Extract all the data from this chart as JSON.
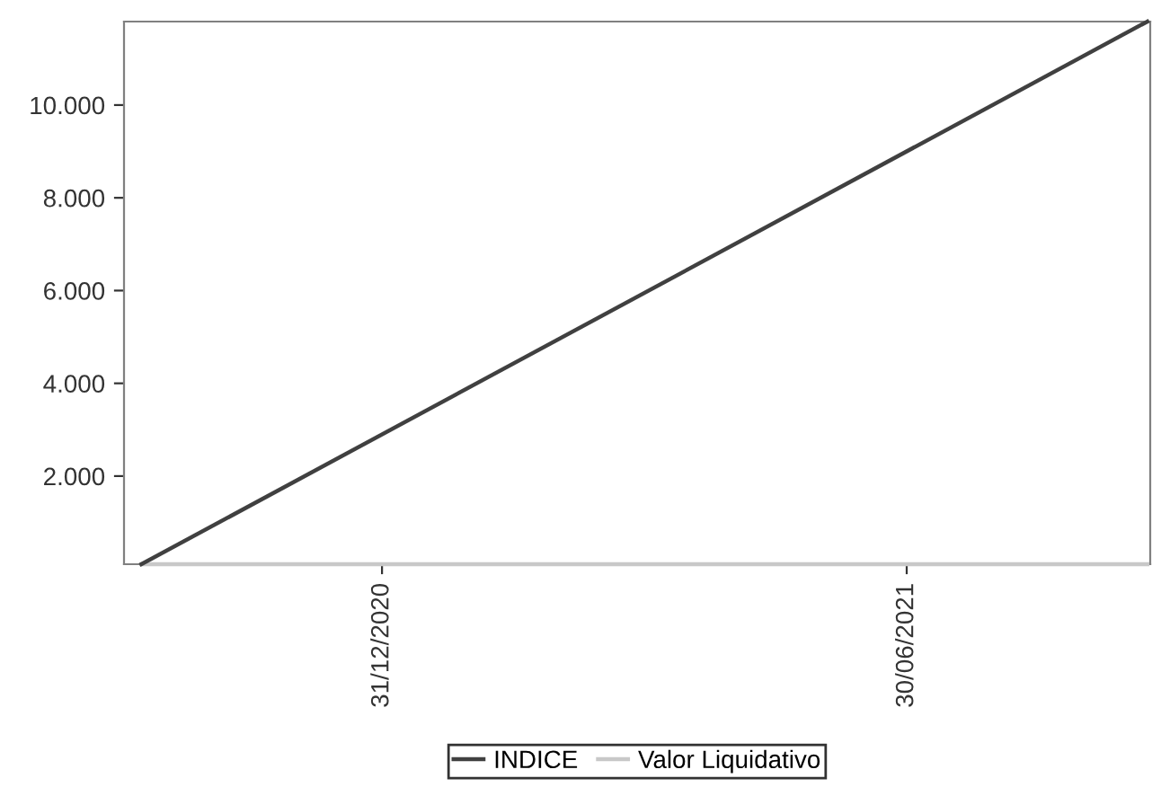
{
  "chart_data": {
    "type": "line",
    "xlim": [
      "2020-10-03",
      "2021-09-22"
    ],
    "xticks": [
      {
        "value": "2020-12-31",
        "label": "31/12/2020"
      },
      {
        "value": "2021-06-30",
        "label": "30/06/2021"
      }
    ],
    "ylim": [
      100,
      11800
    ],
    "yticks": [
      {
        "value": 2000,
        "label": "2.000"
      },
      {
        "value": 4000,
        "label": "4.000"
      },
      {
        "value": 6000,
        "label": "6.000"
      },
      {
        "value": 8000,
        "label": "8.000"
      },
      {
        "value": 10000,
        "label": "10.000"
      }
    ],
    "series": [
      {
        "name": "INDICE",
        "color": "#404040",
        "x": [
          "2020-10-09",
          "2021-09-21"
        ],
        "values": [
          100,
          11800
        ]
      },
      {
        "name": "Valor Liquidativo",
        "color": "#c8c8c8",
        "x": [
          "2020-10-09",
          "2021-09-21"
        ],
        "values": [
          100,
          100
        ]
      }
    ],
    "grid": false,
    "legend": "bottom",
    "marker": "none",
    "line_style": "solid"
  }
}
